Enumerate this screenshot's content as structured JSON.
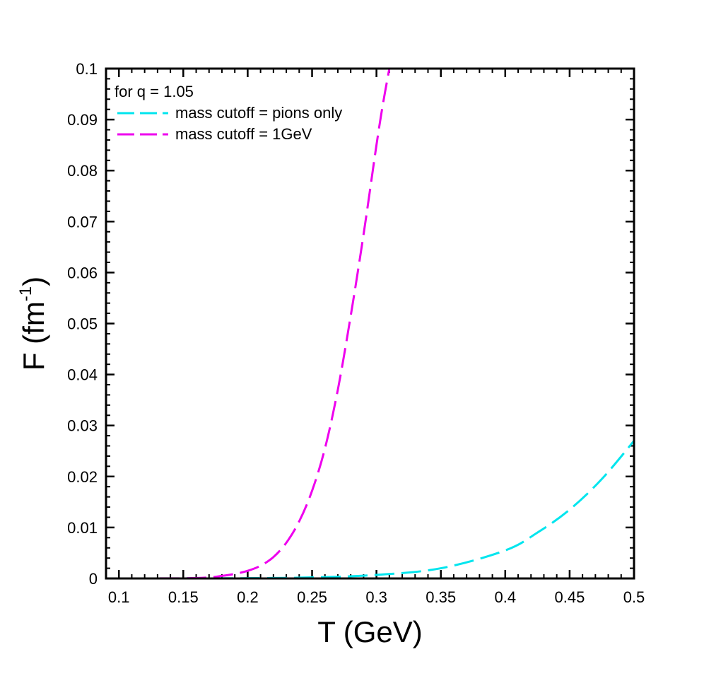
{
  "chart_data": {
    "type": "line",
    "title": "",
    "xlabel": "T (GeV)",
    "ylabel": {
      "main": "F (fm",
      "sup": "-1",
      "close": ")"
    },
    "xlim": [
      0.09,
      0.5
    ],
    "ylim": [
      0,
      0.1
    ],
    "x_ticks": [
      0.1,
      0.15,
      0.2,
      0.25,
      0.3,
      0.35,
      0.4,
      0.45,
      0.5
    ],
    "x_tick_labels": [
      "0.1",
      "0.15",
      "0.2",
      "0.25",
      "0.3",
      "0.35",
      "0.4",
      "0.45",
      "0.5"
    ],
    "y_ticks": [
      0,
      0.01,
      0.02,
      0.03,
      0.04,
      0.05,
      0.06,
      0.07,
      0.08,
      0.09,
      0.1
    ],
    "y_tick_labels": [
      "0",
      "0.01",
      "0.02",
      "0.03",
      "0.04",
      "0.05",
      "0.06",
      "0.07",
      "0.08",
      "0.09",
      "0.1"
    ],
    "x_minor_step": 0.01,
    "y_minor_step": 0.002,
    "grid": false,
    "legend": {
      "placement": "top-left",
      "header": "for q = 1.05",
      "entries": [
        {
          "name": "mass cutoff = pions only",
          "color": "#00e5ee",
          "style": "dashed"
        },
        {
          "name": "mass cutoff = 1GeV",
          "color": "#ee00ee",
          "style": "dashed"
        }
      ]
    },
    "series": [
      {
        "name": "mass cutoff = pions only",
        "color": "#00e5ee",
        "style": "dashed",
        "x": [
          0.09,
          0.15,
          0.2,
          0.25,
          0.3,
          0.35,
          0.4,
          0.425,
          0.45,
          0.475,
          0.5
        ],
        "y": [
          0.0,
          1e-05,
          5e-05,
          0.0002,
          0.0007,
          0.002,
          0.0055,
          0.009,
          0.0135,
          0.0195,
          0.027
        ]
      },
      {
        "name": "mass cutoff = 1GeV",
        "color": "#ee00ee",
        "style": "dashed",
        "x": [
          0.09,
          0.15,
          0.17,
          0.18,
          0.19,
          0.2,
          0.21,
          0.22,
          0.23,
          0.24,
          0.25,
          0.26,
          0.27,
          0.28,
          0.29,
          0.3,
          0.305,
          0.31
        ],
        "y": [
          0.0,
          3e-05,
          0.0002,
          0.0005,
          0.0009,
          0.0015,
          0.0025,
          0.0042,
          0.007,
          0.0112,
          0.0172,
          0.0255,
          0.037,
          0.0515,
          0.0675,
          0.085,
          0.093,
          0.1
        ]
      }
    ]
  }
}
